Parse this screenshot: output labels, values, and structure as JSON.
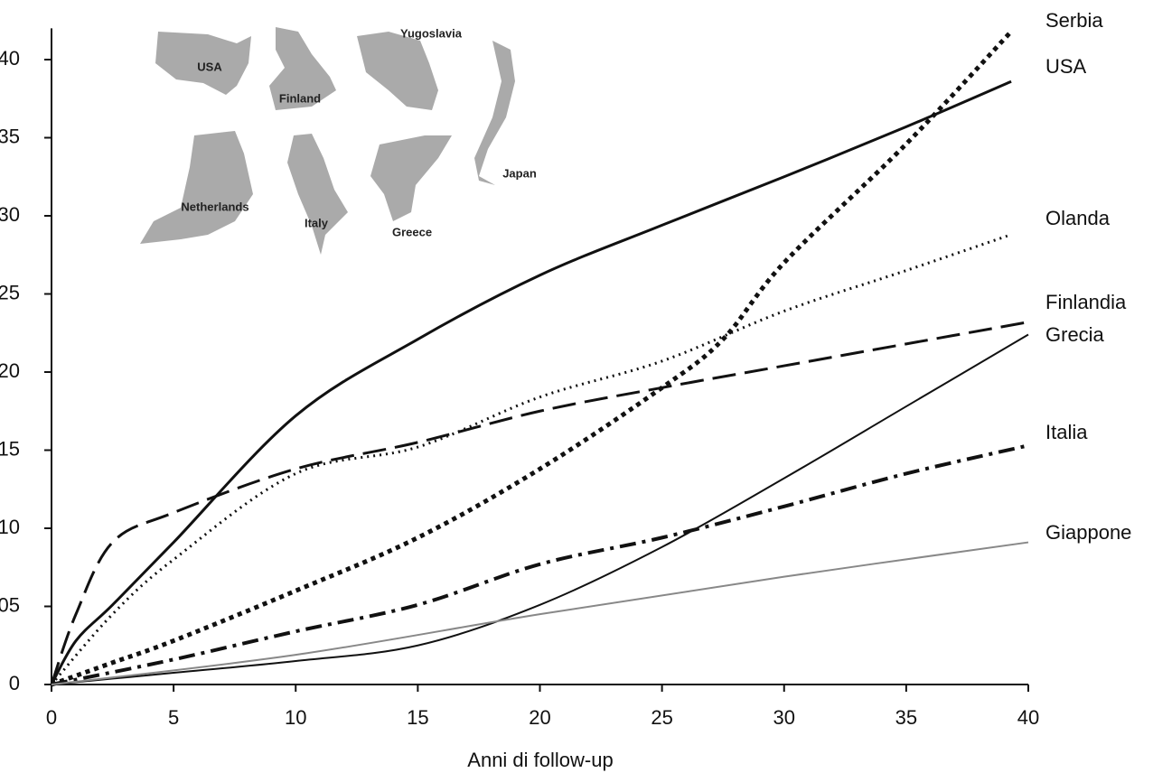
{
  "chart_data": {
    "type": "line",
    "x_label": "Anni di follow-up",
    "xlim": [
      0,
      40
    ],
    "xticks": [
      0,
      5,
      10,
      15,
      20,
      25,
      30,
      35,
      40
    ],
    "ylim": [
      0,
      0.42
    ],
    "yticks": [
      {
        "value": 0,
        "label": "0"
      },
      {
        "value": 0.05,
        "label": "05"
      },
      {
        "value": 0.1,
        "label": "10"
      },
      {
        "value": 0.15,
        "label": "15"
      },
      {
        "value": 0.2,
        "label": "20"
      },
      {
        "value": 0.25,
        "label": "25"
      },
      {
        "value": 0.3,
        "label": "30"
      },
      {
        "value": 0.35,
        "label": "35"
      },
      {
        "value": 0.4,
        "label": "40"
      }
    ],
    "grid": false,
    "series": [
      {
        "name": "Serbia",
        "color": "#111111",
        "dash": "dotted-thick",
        "x": [
          0,
          2.5,
          5,
          10,
          15,
          20,
          25,
          27.5,
          30,
          35,
          39.3
        ],
        "values": [
          0,
          0.014,
          0.028,
          0.06,
          0.094,
          0.138,
          0.19,
          0.221,
          0.27,
          0.346,
          0.418
        ]
      },
      {
        "name": "USA",
        "color": "#111111",
        "dash": "solid",
        "x": [
          0,
          1,
          2.5,
          5,
          10,
          15,
          20,
          25,
          30,
          35,
          39.3
        ],
        "values": [
          0,
          0.028,
          0.051,
          0.091,
          0.172,
          0.221,
          0.262,
          0.294,
          0.325,
          0.357,
          0.386
        ]
      },
      {
        "name": "Olanda",
        "color": "#111111",
        "dash": "dotted",
        "x": [
          0,
          2.5,
          5,
          10,
          15,
          20,
          25,
          30,
          35,
          39.3
        ],
        "values": [
          0,
          0.045,
          0.08,
          0.135,
          0.152,
          0.184,
          0.207,
          0.239,
          0.265,
          0.288
        ]
      },
      {
        "name": "Finlandia",
        "color": "#111111",
        "dash": "dashed",
        "x": [
          0,
          1,
          2.5,
          5,
          10,
          15,
          20,
          25,
          30,
          35,
          40
        ],
        "values": [
          0,
          0.045,
          0.091,
          0.11,
          0.138,
          0.155,
          0.175,
          0.19,
          0.204,
          0.218,
          0.232
        ]
      },
      {
        "name": "Grecia",
        "color": "#111111",
        "dash": "thin",
        "x": [
          0,
          5,
          10,
          15,
          20,
          25,
          30,
          35,
          40
        ],
        "values": [
          0,
          0.0075,
          0.015,
          0.025,
          0.051,
          0.088,
          0.132,
          0.178,
          0.224
        ]
      },
      {
        "name": "Italia",
        "color": "#111111",
        "dash": "dashdot",
        "x": [
          0,
          5,
          10,
          15,
          20,
          25,
          30,
          35,
          40
        ],
        "values": [
          0,
          0.016,
          0.034,
          0.051,
          0.077,
          0.094,
          0.114,
          0.135,
          0.153
        ]
      },
      {
        "name": "Giappone",
        "color": "#888888",
        "dash": "thin",
        "x": [
          0,
          10,
          20,
          30,
          40
        ],
        "values": [
          0,
          0.019,
          0.045,
          0.069,
          0.091
        ]
      }
    ],
    "inset_labels": [
      "USA",
      "Finland",
      "Yugoslavia",
      "Netherlands",
      "Italy",
      "Greece",
      "Japan"
    ]
  }
}
